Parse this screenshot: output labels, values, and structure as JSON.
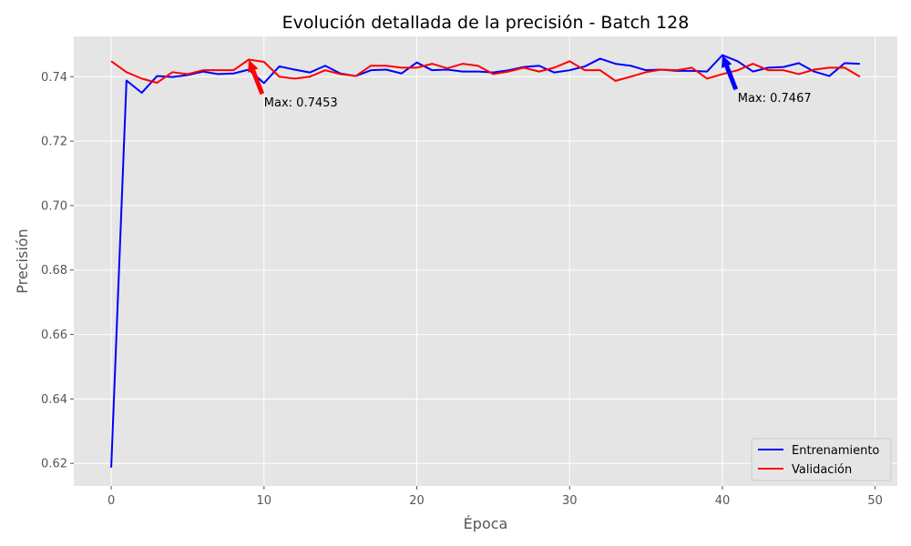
{
  "chart_data": {
    "type": "line",
    "title": "Evolución detallada de la precisión - Batch 128",
    "xlabel": "Época",
    "ylabel": "Precisión",
    "xlim": [
      -2.45,
      51.45
    ],
    "ylim": [
      0.613,
      0.7525
    ],
    "xticks": [
      0,
      10,
      20,
      30,
      40,
      50
    ],
    "yticks": [
      0.62,
      0.64,
      0.66,
      0.68,
      0.7,
      0.72,
      0.74
    ],
    "xtick_labels": [
      "0",
      "10",
      "20",
      "30",
      "40",
      "50"
    ],
    "ytick_labels": [
      "0.62",
      "0.64",
      "0.66",
      "0.68",
      "0.70",
      "0.72",
      "0.74"
    ],
    "grid": true,
    "legend_position": "bottom-right",
    "x": [
      0,
      1,
      2,
      3,
      4,
      5,
      6,
      7,
      8,
      9,
      10,
      11,
      12,
      13,
      14,
      15,
      16,
      17,
      18,
      19,
      20,
      21,
      22,
      23,
      24,
      25,
      26,
      27,
      28,
      29,
      30,
      31,
      32,
      33,
      34,
      35,
      36,
      37,
      38,
      39,
      40,
      41,
      42,
      43,
      44,
      45,
      46,
      47,
      48,
      49
    ],
    "series": [
      {
        "name": "Entrenamiento",
        "color": "#0000ff",
        "values": [
          0.6187,
          0.7388,
          0.735,
          0.7402,
          0.7399,
          0.7405,
          0.7416,
          0.7408,
          0.741,
          0.7422,
          0.738,
          0.7432,
          0.7422,
          0.7413,
          0.7434,
          0.741,
          0.7402,
          0.742,
          0.7422,
          0.741,
          0.7444,
          0.742,
          0.7422,
          0.7416,
          0.7416,
          0.7413,
          0.742,
          0.743,
          0.7434,
          0.7413,
          0.742,
          0.7432,
          0.7456,
          0.744,
          0.7434,
          0.742,
          0.7422,
          0.7418,
          0.7418,
          0.7416,
          0.7467,
          0.7448,
          0.7416,
          0.7428,
          0.743,
          0.7442,
          0.7416,
          0.7402,
          0.7442,
          0.744
        ]
      },
      {
        "name": "Validación",
        "color": "#ff0000",
        "values": [
          0.7448,
          0.7414,
          0.7394,
          0.7381,
          0.7414,
          0.7408,
          0.742,
          0.742,
          0.742,
          0.7453,
          0.7446,
          0.74,
          0.7394,
          0.74,
          0.742,
          0.7408,
          0.7402,
          0.7434,
          0.7434,
          0.7428,
          0.7428,
          0.744,
          0.7426,
          0.744,
          0.7434,
          0.7408,
          0.7416,
          0.7428,
          0.7416,
          0.7428,
          0.7448,
          0.742,
          0.742,
          0.7387,
          0.74,
          0.7414,
          0.7422,
          0.742,
          0.7428,
          0.7394,
          0.7408,
          0.742,
          0.744,
          0.742,
          0.742,
          0.7408,
          0.7422,
          0.7428,
          0.7428,
          0.74
        ]
      }
    ],
    "annotations": [
      {
        "text": "Max: 0.7453",
        "x": 9,
        "y": 0.7453,
        "text_x": 10,
        "text_y": 0.7307,
        "color": "#ff0000"
      },
      {
        "text": "Max: 0.7467",
        "x": 40,
        "y": 0.7467,
        "text_x": 41,
        "text_y": 0.7321,
        "color": "#0000ff"
      }
    ]
  }
}
